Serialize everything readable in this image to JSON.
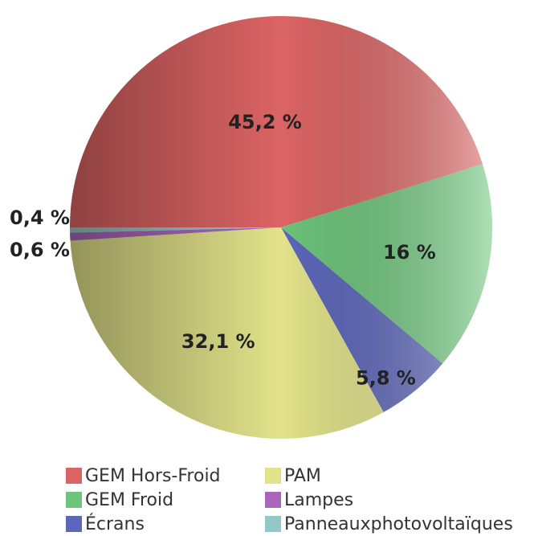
{
  "chart_data": {
    "type": "pie",
    "categories": [
      "GEM Hors-Froid",
      "GEM Froid",
      "Écrans",
      "PAM",
      "Lampes",
      "Panneauxphotovoltaïques"
    ],
    "values": [
      45.2,
      16,
      5.8,
      32.1,
      0.6,
      0.4
    ],
    "value_labels": [
      "45,2 %",
      "16 %",
      "5,8 %",
      "32,1 %",
      "0,6 %",
      "0,4 %"
    ],
    "colors": [
      "#dc6464",
      "#6cc57a",
      "#5c66ba",
      "#e2e38a",
      "#aa66ba",
      "#93c8c8"
    ]
  }
}
